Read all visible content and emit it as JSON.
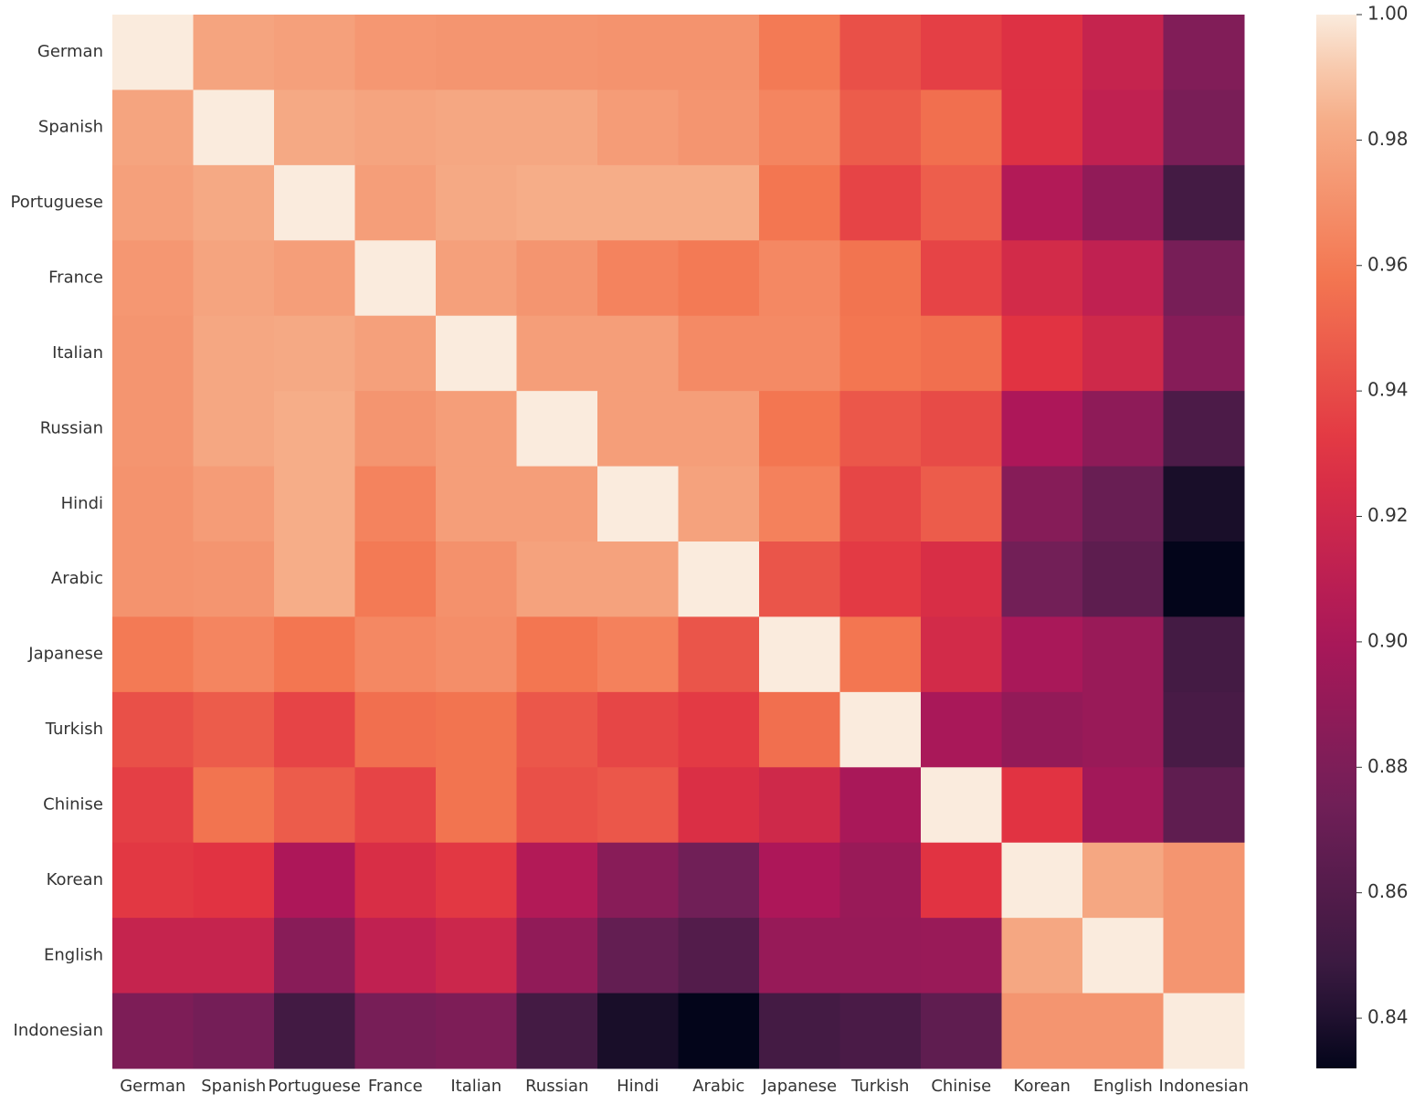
{
  "chart_data": {
    "type": "heatmap",
    "categories": [
      "German",
      "Spanish",
      "Portuguese",
      "France",
      "Italian",
      "Russian",
      "Hindi",
      "Arabic",
      "Japanese",
      "Turkish",
      "Chinise",
      "Korean",
      "English",
      "Indonesian"
    ],
    "values": [
      [
        1,
        0.979,
        0.977,
        0.973,
        0.972,
        0.972,
        0.971,
        0.971,
        0.96,
        0.942,
        0.935,
        0.928,
        0.915,
        0.882
      ],
      [
        0.979,
        1,
        0.981,
        0.979,
        0.98,
        0.98,
        0.975,
        0.972,
        0.965,
        0.947,
        0.955,
        0.928,
        0.912,
        0.878
      ],
      [
        0.977,
        0.981,
        1,
        0.976,
        0.981,
        0.983,
        0.983,
        0.983,
        0.958,
        0.937,
        0.948,
        0.905,
        0.889,
        0.853
      ],
      [
        0.973,
        0.979,
        0.976,
        1,
        0.977,
        0.972,
        0.964,
        0.96,
        0.966,
        0.957,
        0.937,
        0.922,
        0.912,
        0.877
      ],
      [
        0.972,
        0.98,
        0.981,
        0.977,
        1,
        0.976,
        0.976,
        0.967,
        0.967,
        0.958,
        0.955,
        0.93,
        0.92,
        0.884
      ],
      [
        0.972,
        0.98,
        0.983,
        0.972,
        0.976,
        1,
        0.976,
        0.976,
        0.958,
        0.945,
        0.94,
        0.902,
        0.888,
        0.857
      ],
      [
        0.971,
        0.975,
        0.983,
        0.964,
        0.976,
        0.976,
        1,
        0.978,
        0.963,
        0.938,
        0.947,
        0.884,
        0.87,
        0.838
      ],
      [
        0.971,
        0.972,
        0.983,
        0.96,
        0.97,
        0.978,
        0.978,
        1,
        0.944,
        0.933,
        0.925,
        0.875,
        0.865,
        0.832
      ],
      [
        0.96,
        0.965,
        0.958,
        0.966,
        0.969,
        0.958,
        0.963,
        0.944,
        1,
        0.958,
        0.922,
        0.9,
        0.893,
        0.853
      ],
      [
        0.942,
        0.947,
        0.937,
        0.955,
        0.957,
        0.945,
        0.938,
        0.933,
        0.955,
        1,
        0.9,
        0.89,
        0.893,
        0.855
      ],
      [
        0.935,
        0.957,
        0.947,
        0.937,
        0.957,
        0.942,
        0.945,
        0.926,
        0.92,
        0.9,
        1,
        0.93,
        0.897,
        0.866
      ],
      [
        0.932,
        0.93,
        0.902,
        0.925,
        0.932,
        0.905,
        0.885,
        0.874,
        0.902,
        0.893,
        0.93,
        1,
        0.98,
        0.972
      ],
      [
        0.915,
        0.915,
        0.885,
        0.912,
        0.918,
        0.889,
        0.868,
        0.86,
        0.892,
        0.892,
        0.893,
        0.98,
        1,
        0.972
      ],
      [
        0.88,
        0.876,
        0.852,
        0.877,
        0.88,
        0.853,
        0.838,
        0.832,
        0.853,
        0.856,
        0.866,
        0.972,
        0.972,
        1
      ]
    ],
    "colormap": "rocket",
    "colorbar_lim": [
      0.832,
      1.0
    ],
    "colorbar_ticks": [
      0.84,
      0.86,
      0.88,
      {
        "value": 0.9,
        "label": "0.90"
      },
      0.92,
      0.94,
      0.96,
      0.98,
      {
        "value": 1.0,
        "label": "1.00"
      }
    ]
  }
}
